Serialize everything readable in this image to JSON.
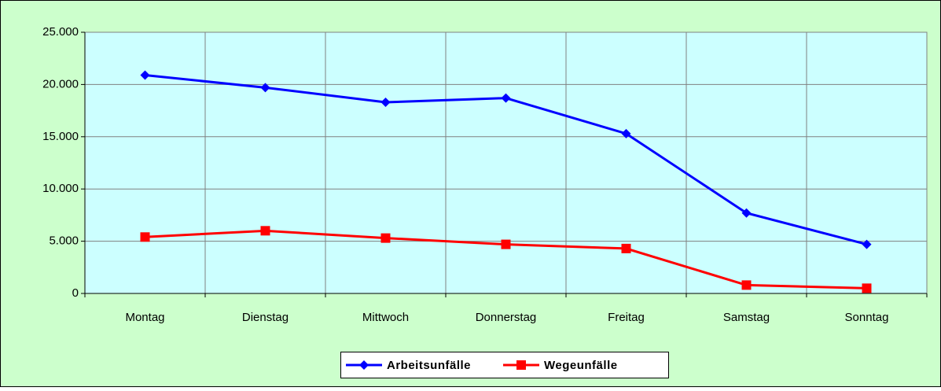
{
  "chart_data": {
    "type": "line",
    "categories": [
      "Montag",
      "Dienstag",
      "Mittwoch",
      "Donnerstag",
      "Freitag",
      "Samstag",
      "Sonntag"
    ],
    "series": [
      {
        "name": "Arbeitsunfälle",
        "color": "#0000ff",
        "marker": "diamond",
        "values": [
          20900,
          19700,
          18300,
          18700,
          15300,
          7700,
          4700
        ]
      },
      {
        "name": "Wegeunfälle",
        "color": "#ff0000",
        "marker": "square",
        "values": [
          5400,
          6000,
          5300,
          4700,
          4300,
          800,
          500
        ]
      }
    ],
    "ylim": [
      0,
      25000
    ],
    "yticks": [
      0,
      {
        "value": 5000,
        "label": "5.000"
      },
      {
        "value": 10000,
        "label": "10.000"
      },
      {
        "value": 15000,
        "label": "15.000"
      },
      {
        "value": 20000,
        "label": "20.000"
      },
      {
        "value": 25000,
        "label": "25.000"
      }
    ],
    "grid": true,
    "legend": "bottom"
  }
}
